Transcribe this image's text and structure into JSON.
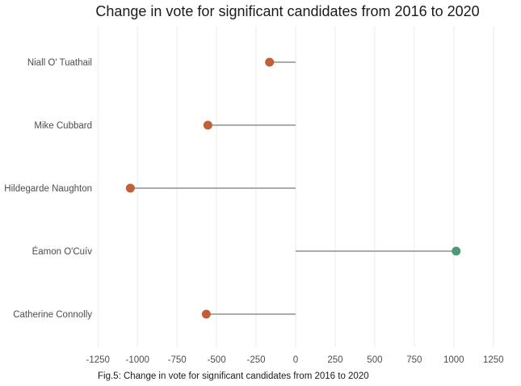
{
  "chart_data": {
    "type": "lollipop",
    "title": "Change in vote for significant candidates from 2016 to 2020",
    "caption": "Fig.5: Change in vote for significant candidates from 2016 to 2020",
    "xlabel": "",
    "ylabel": "",
    "xlim": [
      -1300,
      1300
    ],
    "x_ticks": [
      -1250,
      -1000,
      -750,
      -500,
      -250,
      0,
      250,
      500,
      750,
      1000,
      1250
    ],
    "x_tick_labels": [
      "-1250",
      "-1000",
      "-750",
      "-500",
      "-250",
      "0",
      "250",
      "500",
      "750",
      "1000",
      "1250"
    ],
    "grid": "vertical",
    "legend": "none",
    "colors": {
      "negative": "#c0603b",
      "positive": "#4a9a78",
      "stem": "#ababab",
      "grid": "#ebebeb"
    },
    "categories": [
      "Niall O' Tuathail",
      "Mike Cubbard",
      "Hildegarde Naughton",
      "Éamon O'Cuív",
      "Catherine Connolly"
    ],
    "values": [
      -165,
      -555,
      -1045,
      1015,
      -565
    ]
  }
}
